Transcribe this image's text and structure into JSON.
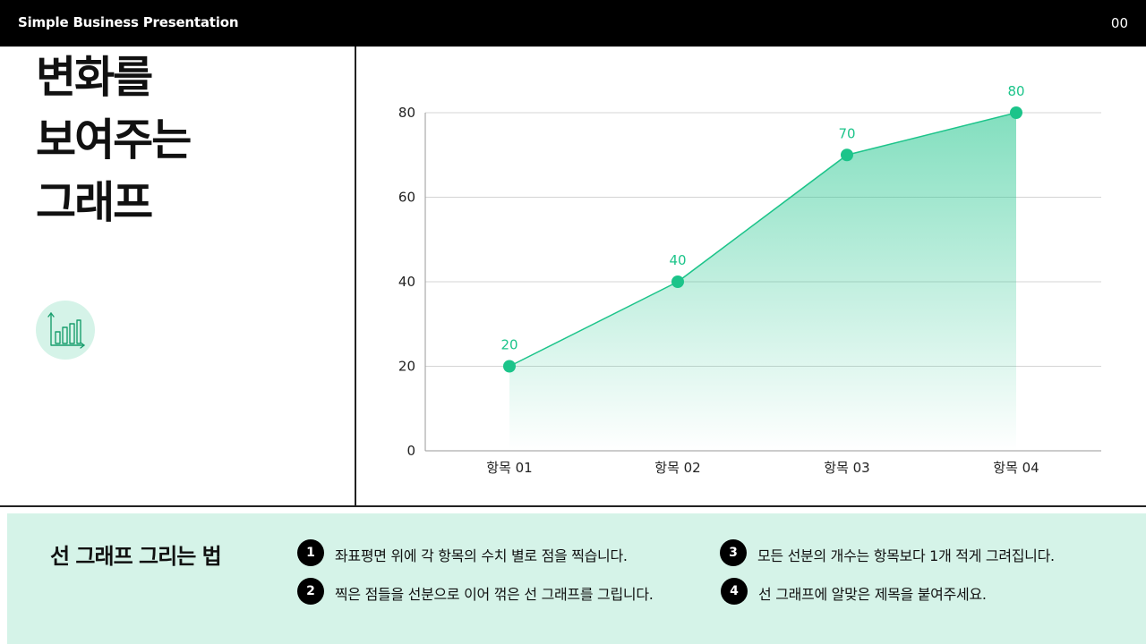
{
  "header": {
    "title": "Simple Business Presentation",
    "page_number": "00"
  },
  "slide": {
    "heading_lines": [
      "변화를",
      "보여주는",
      "그래프"
    ],
    "icon": "bar-chart-icon"
  },
  "colors": {
    "accent": "#1cc48a",
    "panel": "#d5f3e8",
    "dark": "#000000"
  },
  "chart_data": {
    "type": "area",
    "categories": [
      "항목 01",
      "항목 02",
      "항목 03",
      "항목 04"
    ],
    "values": [
      20,
      40,
      70,
      80
    ],
    "data_labels": [
      "20",
      "40",
      "70",
      "80"
    ],
    "ylim": [
      0,
      80
    ],
    "yticks": [
      0,
      20,
      40,
      60,
      80
    ],
    "ytick_labels": [
      "0",
      "20",
      "40",
      "60",
      "80"
    ],
    "grid": true,
    "title": "",
    "xlabel": "",
    "ylabel": ""
  },
  "bottom": {
    "title": "선 그래프 그리는 법",
    "steps": [
      {
        "num": "1",
        "text": "좌표평면 위에 각 항목의 수치 별로 점을 찍습니다."
      },
      {
        "num": "2",
        "text": "찍은 점들을 선분으로 이어 꺾은 선 그래프를 그립니다."
      },
      {
        "num": "3",
        "text": "모든 선분의 개수는 항목보다 1개 적게 그려집니다."
      },
      {
        "num": "4",
        "text": "선 그래프에 알맞은 제목을 붙여주세요."
      }
    ]
  }
}
